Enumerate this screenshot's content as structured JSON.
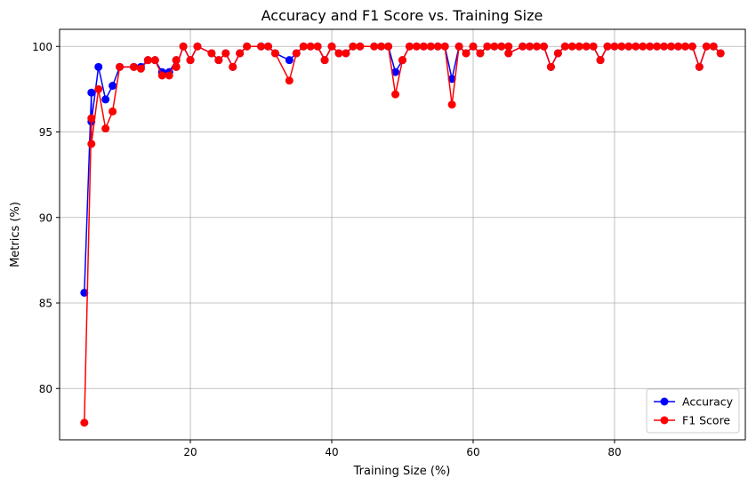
{
  "chart_data": {
    "type": "line",
    "title": "Accuracy and F1 Score vs. Training Size",
    "xlabel": "Training Size (%)",
    "ylabel": "Metrics (%)",
    "xlim": [
      1.5,
      98.5
    ],
    "ylim": [
      77.0,
      101.0
    ],
    "xticks": [
      20,
      40,
      60,
      80
    ],
    "yticks": [
      80,
      85,
      90,
      95,
      100
    ],
    "grid": true,
    "legend_position": "bottom-right",
    "series": [
      {
        "name": "Accuracy",
        "color": "#0000ff",
        "x": [
          5,
          6,
          6,
          7,
          8,
          9,
          10,
          12,
          13,
          14,
          15,
          16,
          17,
          18,
          18,
          19,
          20,
          21,
          23,
          24,
          25,
          26,
          27,
          28,
          30,
          31,
          32,
          34,
          35,
          36,
          37,
          38,
          39,
          40,
          41,
          42,
          43,
          44,
          46,
          47,
          48,
          49,
          50,
          51,
          52,
          53,
          54,
          55,
          56,
          57,
          58,
          59,
          60,
          61,
          62,
          63,
          64,
          65,
          65,
          67,
          68,
          69,
          70,
          71,
          72,
          73,
          74,
          75,
          76,
          77,
          78,
          79,
          80,
          81,
          82,
          83,
          84,
          85,
          86,
          87,
          88,
          89,
          90,
          91,
          92,
          93,
          94,
          95
        ],
        "y": [
          85.6,
          97.3,
          95.6,
          98.8,
          96.9,
          97.7,
          98.8,
          98.8,
          98.8,
          99.2,
          99.2,
          98.5,
          98.5,
          99.2,
          98.8,
          100,
          99.2,
          100,
          99.6,
          99.2,
          99.6,
          98.8,
          99.6,
          100,
          100,
          100,
          99.6,
          99.2,
          99.6,
          100,
          100,
          100,
          99.2,
          100,
          99.6,
          99.6,
          100,
          100,
          100,
          100,
          100,
          98.5,
          99.2,
          100,
          100,
          100,
          100,
          100,
          100,
          98.1,
          100,
          99.6,
          100,
          99.6,
          100,
          100,
          100,
          100,
          99.6,
          100,
          100,
          100,
          100,
          98.8,
          99.6,
          100,
          100,
          100,
          100,
          100,
          99.2,
          100,
          100,
          100,
          100,
          100,
          100,
          100,
          100,
          100,
          100,
          100,
          100,
          100,
          98.8,
          100,
          100,
          99.6
        ]
      },
      {
        "name": "F1 Score",
        "color": "#ff0000",
        "x": [
          5,
          6,
          6,
          7,
          8,
          9,
          10,
          12,
          13,
          14,
          15,
          16,
          17,
          18,
          18,
          19,
          20,
          21,
          23,
          24,
          25,
          26,
          27,
          28,
          30,
          31,
          32,
          34,
          35,
          36,
          37,
          38,
          39,
          40,
          41,
          42,
          43,
          44,
          46,
          47,
          48,
          49,
          50,
          51,
          52,
          53,
          54,
          55,
          56,
          57,
          58,
          59,
          60,
          61,
          62,
          63,
          64,
          65,
          65,
          67,
          68,
          69,
          70,
          71,
          72,
          73,
          74,
          75,
          76,
          77,
          78,
          79,
          80,
          81,
          82,
          83,
          84,
          85,
          86,
          87,
          88,
          89,
          90,
          91,
          92,
          93,
          94,
          95
        ],
        "y": [
          78,
          95.8,
          94.3,
          97.5,
          95.2,
          96.2,
          98.8,
          98.8,
          98.7,
          99.2,
          99.2,
          98.3,
          98.3,
          99.2,
          98.8,
          100,
          99.2,
          100,
          99.6,
          99.2,
          99.6,
          98.8,
          99.6,
          100,
          100,
          100,
          99.6,
          98,
          99.6,
          100,
          100,
          100,
          99.2,
          100,
          99.6,
          99.6,
          100,
          100,
          100,
          100,
          100,
          97.2,
          99.2,
          100,
          100,
          100,
          100,
          100,
          100,
          96.6,
          100,
          99.6,
          100,
          99.6,
          100,
          100,
          100,
          100,
          99.6,
          100,
          100,
          100,
          100,
          98.8,
          99.6,
          100,
          100,
          100,
          100,
          100,
          99.2,
          100,
          100,
          100,
          100,
          100,
          100,
          100,
          100,
          100,
          100,
          100,
          100,
          100,
          98.8,
          100,
          100,
          99.6
        ]
      }
    ]
  }
}
